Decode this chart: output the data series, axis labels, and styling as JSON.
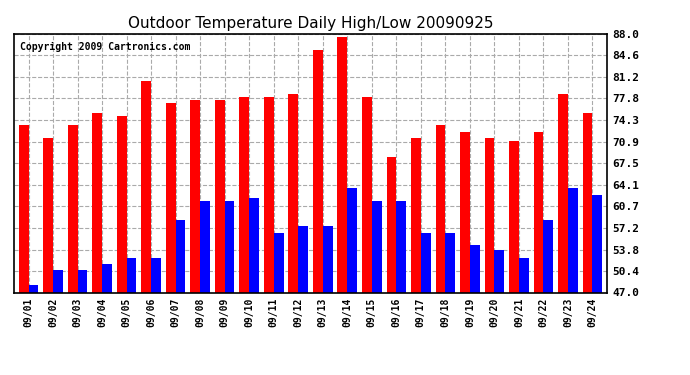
{
  "title": "Outdoor Temperature Daily High/Low 20090925",
  "copyright": "Copyright 2009 Cartronics.com",
  "dates": [
    "09/01",
    "09/02",
    "09/03",
    "09/04",
    "09/05",
    "09/06",
    "09/07",
    "09/08",
    "09/09",
    "09/10",
    "09/11",
    "09/12",
    "09/13",
    "09/14",
    "09/15",
    "09/16",
    "09/17",
    "09/18",
    "09/19",
    "09/20",
    "09/21",
    "09/22",
    "09/23",
    "09/24"
  ],
  "highs": [
    73.5,
    71.5,
    73.5,
    75.5,
    75.0,
    80.5,
    77.0,
    77.5,
    77.5,
    78.0,
    78.0,
    78.5,
    85.5,
    87.5,
    78.0,
    68.5,
    71.5,
    73.5,
    72.5,
    71.5,
    71.0,
    72.5,
    78.5,
    75.5
  ],
  "lows": [
    48.2,
    50.5,
    50.5,
    51.5,
    52.5,
    52.5,
    58.5,
    61.5,
    61.5,
    62.0,
    56.5,
    57.5,
    57.5,
    63.5,
    61.5,
    61.5,
    56.5,
    56.5,
    54.5,
    53.8,
    52.5,
    58.5,
    63.5,
    62.5
  ],
  "high_color": "#ff0000",
  "low_color": "#0000ff",
  "bg_color": "#ffffff",
  "grid_color": "#aaaaaa",
  "yticks": [
    47.0,
    50.4,
    53.8,
    57.2,
    60.7,
    64.1,
    67.5,
    70.9,
    74.3,
    77.8,
    81.2,
    84.6,
    88.0
  ],
  "ymin": 47.0,
  "ymax": 88.0,
  "bar_width": 0.4
}
